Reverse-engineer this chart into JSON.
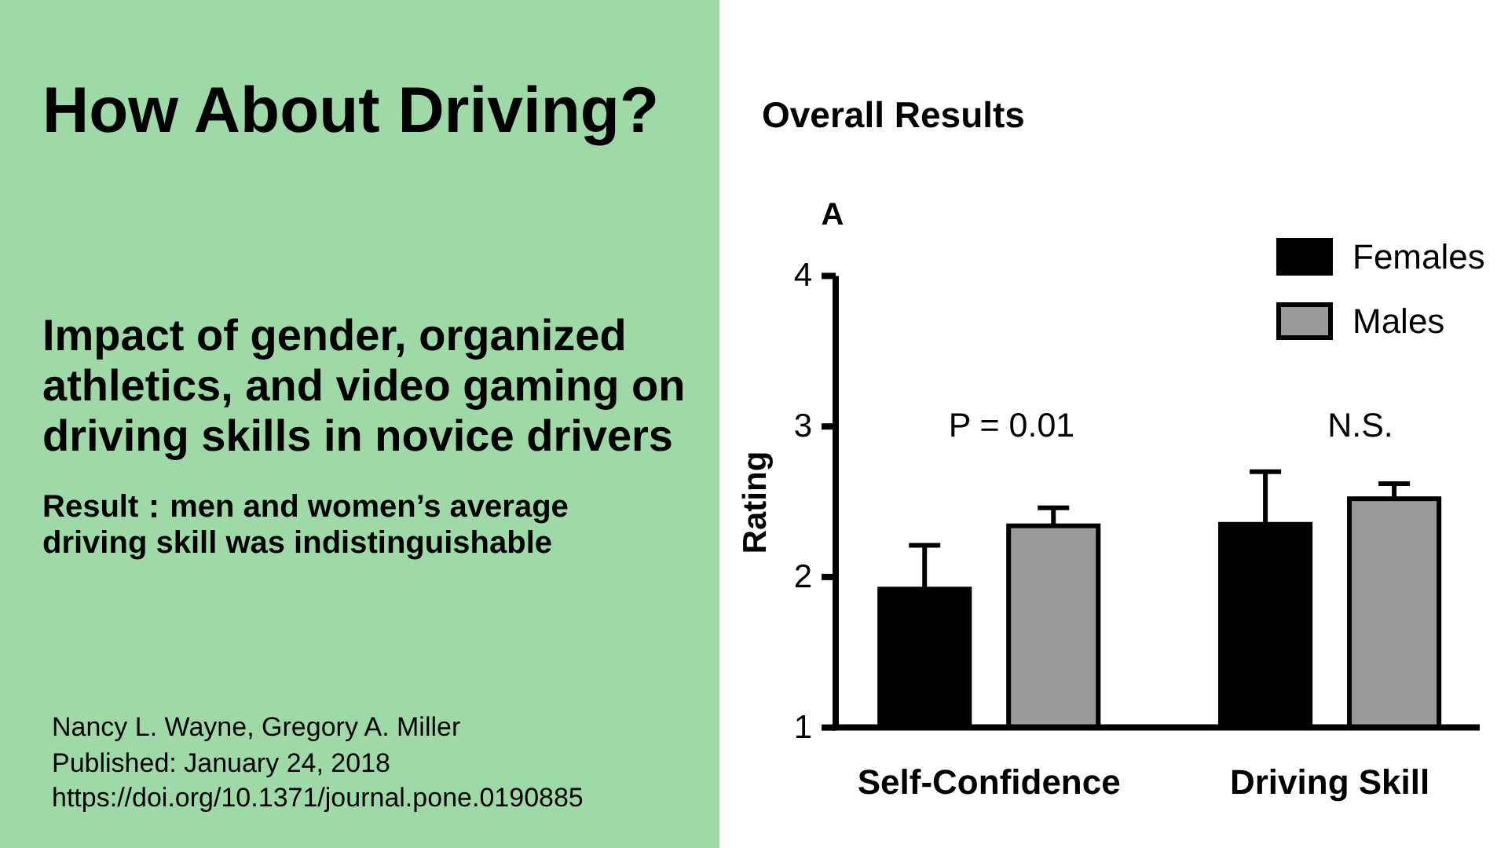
{
  "chart_data": {
    "type": "bar",
    "title": "How About Driving?",
    "subtitle": "Impact of gender, organized athletics, and video gaming on driving skills in novice drivers",
    "ylabel": "Rating",
    "categories": [
      "Self-Confidence",
      "Driving Skill"
    ],
    "series": [
      {
        "name": "Females",
        "color": "#000000",
        "values": [
          1.92,
          2.35
        ],
        "errors": [
          [
            1.92,
            2.21
          ],
          [
            2.35,
            2.7
          ]
        ]
      },
      {
        "name": "Males",
        "color": "#999999",
        "values": [
          2.34,
          2.52
        ],
        "errors": [
          [
            2.34,
            2.46
          ],
          [
            2.52,
            2.62
          ]
        ]
      }
    ],
    "ylim": [
      1,
      4
    ],
    "yticks": [
      1,
      2,
      3,
      4
    ],
    "legend": "top right",
    "annotations": [
      "Overall Results",
      "A",
      "P = 0.01",
      "N.S.",
      "Result：men and women’s average driving skill was indistinguishable",
      "Nancy L. Wayne, Gregory A. Miller",
      "Published: January 24, 2018",
      "https://doi.org/10.1371/journal.pone.0190885"
    ]
  }
}
